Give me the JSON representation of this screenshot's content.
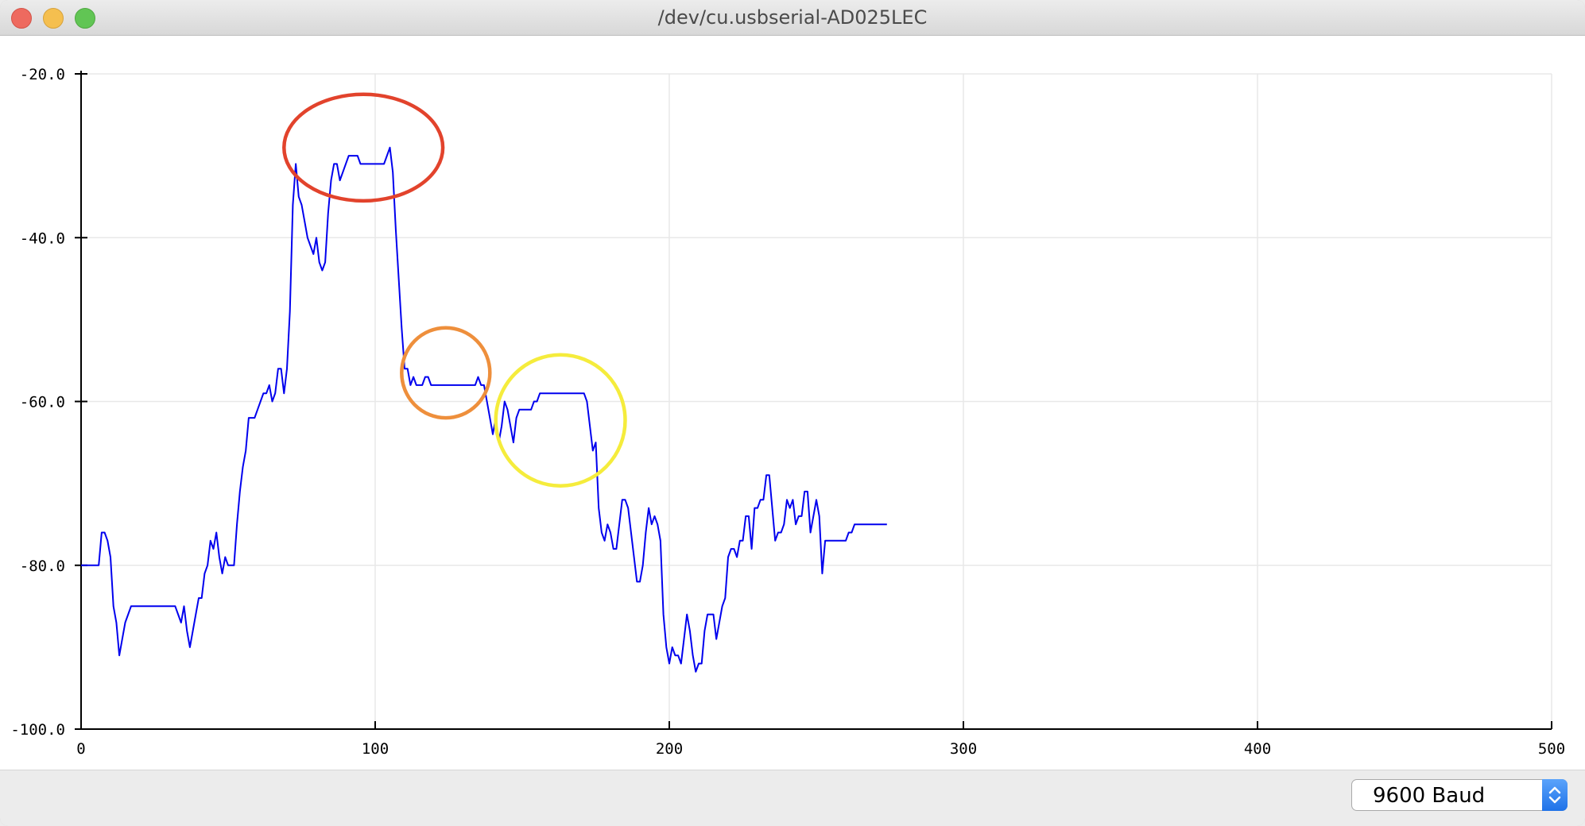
{
  "window": {
    "title": "/dev/cu.usbserial-AD025LEC"
  },
  "footer": {
    "baud_value": "9600 Baud",
    "baud_icon": "chevron-up-down-icon"
  },
  "colors": {
    "series": "#0000ee",
    "annotation_red": "#e2432c",
    "annotation_orange": "#ee8f3c",
    "annotation_yellow": "#f5ec3c"
  },
  "chart_data": {
    "type": "line",
    "xlim": [
      0,
      500
    ],
    "ylim": [
      -100,
      -20
    ],
    "xticks": [
      "0",
      "100",
      "200",
      "300",
      "400",
      "500"
    ],
    "yticks": [
      "-20.0",
      "-40.0",
      "-60.0",
      "-80.0",
      "-100.0"
    ],
    "grid": true,
    "series": [
      {
        "values": [
          [
            0,
            -80
          ],
          [
            6,
            -80
          ],
          [
            7,
            -76
          ],
          [
            8,
            -76
          ],
          [
            9,
            -77
          ],
          [
            10,
            -79
          ],
          [
            11,
            -85
          ],
          [
            12,
            -87
          ],
          [
            13,
            -91
          ],
          [
            14,
            -89
          ],
          [
            15,
            -87
          ],
          [
            16,
            -86
          ],
          [
            17,
            -85
          ],
          [
            30,
            -85
          ],
          [
            32,
            -85
          ],
          [
            33,
            -86
          ],
          [
            34,
            -87
          ],
          [
            35,
            -85
          ],
          [
            36,
            -88
          ],
          [
            37,
            -90
          ],
          [
            38,
            -88
          ],
          [
            39,
            -86
          ],
          [
            40,
            -84
          ],
          [
            41,
            -84
          ],
          [
            42,
            -81
          ],
          [
            43,
            -80
          ],
          [
            44,
            -77
          ],
          [
            45,
            -78
          ],
          [
            46,
            -76
          ],
          [
            47,
            -79
          ],
          [
            48,
            -81
          ],
          [
            49,
            -79
          ],
          [
            50,
            -80
          ],
          [
            52,
            -80
          ],
          [
            53,
            -75
          ],
          [
            54,
            -71
          ],
          [
            55,
            -68
          ],
          [
            56,
            -66
          ],
          [
            57,
            -62
          ],
          [
            59,
            -62
          ],
          [
            60,
            -61
          ],
          [
            61,
            -60
          ],
          [
            62,
            -59
          ],
          [
            63,
            -59
          ],
          [
            64,
            -58
          ],
          [
            65,
            -60
          ],
          [
            66,
            -59
          ],
          [
            67,
            -56
          ],
          [
            68,
            -56
          ],
          [
            69,
            -59
          ],
          [
            70,
            -56
          ],
          [
            71,
            -49
          ],
          [
            72,
            -36
          ],
          [
            73,
            -31
          ],
          [
            74,
            -35
          ],
          [
            75,
            -36
          ],
          [
            76,
            -38
          ],
          [
            77,
            -40
          ],
          [
            78,
            -41
          ],
          [
            79,
            -42
          ],
          [
            80,
            -40
          ],
          [
            81,
            -43
          ],
          [
            82,
            -44
          ],
          [
            83,
            -43
          ],
          [
            84,
            -37
          ],
          [
            85,
            -33
          ],
          [
            86,
            -31
          ],
          [
            87,
            -31
          ],
          [
            88,
            -33
          ],
          [
            89,
            -32
          ],
          [
            90,
            -31
          ],
          [
            91,
            -30
          ],
          [
            93,
            -30
          ],
          [
            94,
            -30
          ],
          [
            95,
            -31
          ],
          [
            103,
            -31
          ],
          [
            104,
            -30
          ],
          [
            105,
            -29
          ],
          [
            106,
            -32
          ],
          [
            107,
            -39
          ],
          [
            108,
            -45
          ],
          [
            109,
            -51
          ],
          [
            110,
            -56
          ],
          [
            111,
            -56
          ],
          [
            112,
            -58
          ],
          [
            113,
            -57
          ],
          [
            114,
            -58
          ],
          [
            116,
            -58
          ],
          [
            117,
            -57
          ],
          [
            118,
            -57
          ],
          [
            119,
            -58
          ],
          [
            134,
            -58
          ],
          [
            135,
            -57
          ],
          [
            136,
            -58
          ],
          [
            137,
            -58
          ],
          [
            138,
            -60
          ],
          [
            139,
            -62
          ],
          [
            140,
            -64
          ],
          [
            141,
            -62
          ],
          [
            142,
            -65
          ],
          [
            143,
            -63
          ],
          [
            144,
            -60
          ],
          [
            145,
            -61
          ],
          [
            146,
            -63
          ],
          [
            147,
            -65
          ],
          [
            148,
            -62
          ],
          [
            149,
            -61
          ],
          [
            153,
            -61
          ],
          [
            154,
            -60
          ],
          [
            155,
            -60
          ],
          [
            156,
            -59
          ],
          [
            171,
            -59
          ],
          [
            172,
            -60
          ],
          [
            173,
            -63
          ],
          [
            174,
            -66
          ],
          [
            175,
            -65
          ],
          [
            176,
            -73
          ],
          [
            177,
            -76
          ],
          [
            178,
            -77
          ],
          [
            179,
            -75
          ],
          [
            180,
            -76
          ],
          [
            181,
            -78
          ],
          [
            182,
            -78
          ],
          [
            183,
            -75
          ],
          [
            184,
            -72
          ],
          [
            185,
            -72
          ],
          [
            186,
            -73
          ],
          [
            187,
            -76
          ],
          [
            188,
            -79
          ],
          [
            189,
            -82
          ],
          [
            190,
            -82
          ],
          [
            191,
            -80
          ],
          [
            192,
            -76
          ],
          [
            193,
            -73
          ],
          [
            194,
            -75
          ],
          [
            195,
            -74
          ],
          [
            196,
            -75
          ],
          [
            197,
            -77
          ],
          [
            198,
            -86
          ],
          [
            199,
            -90
          ],
          [
            200,
            -92
          ],
          [
            201,
            -90
          ],
          [
            202,
            -91
          ],
          [
            203,
            -91
          ],
          [
            204,
            -92
          ],
          [
            205,
            -89
          ],
          [
            206,
            -86
          ],
          [
            207,
            -88
          ],
          [
            208,
            -91
          ],
          [
            209,
            -93
          ],
          [
            210,
            -92
          ],
          [
            211,
            -92
          ],
          [
            212,
            -88
          ],
          [
            213,
            -86
          ],
          [
            214,
            -86
          ],
          [
            215,
            -86
          ],
          [
            216,
            -89
          ],
          [
            217,
            -87
          ],
          [
            218,
            -85
          ],
          [
            219,
            -84
          ],
          [
            220,
            -79
          ],
          [
            221,
            -78
          ],
          [
            222,
            -78
          ],
          [
            223,
            -79
          ],
          [
            224,
            -77
          ],
          [
            225,
            -77
          ],
          [
            226,
            -74
          ],
          [
            227,
            -74
          ],
          [
            228,
            -78
          ],
          [
            229,
            -73
          ],
          [
            230,
            -73
          ],
          [
            231,
            -72
          ],
          [
            232,
            -72
          ],
          [
            233,
            -69
          ],
          [
            234,
            -69
          ],
          [
            235,
            -73
          ],
          [
            236,
            -77
          ],
          [
            237,
            -76
          ],
          [
            238,
            -76
          ],
          [
            239,
            -75
          ],
          [
            240,
            -72
          ],
          [
            241,
            -73
          ],
          [
            242,
            -72
          ],
          [
            243,
            -75
          ],
          [
            244,
            -74
          ],
          [
            245,
            -74
          ],
          [
            246,
            -71
          ],
          [
            247,
            -71
          ],
          [
            248,
            -76
          ],
          [
            249,
            -74
          ],
          [
            250,
            -72
          ],
          [
            251,
            -74
          ],
          [
            252,
            -81
          ],
          [
            253,
            -77
          ],
          [
            260,
            -77
          ],
          [
            261,
            -76
          ],
          [
            262,
            -76
          ],
          [
            263,
            -75
          ],
          [
            274,
            -75
          ]
        ]
      }
    ],
    "annotations": [
      {
        "shape": "ellipse",
        "color": "red",
        "cx": 96,
        "cy": -29,
        "rx": 27,
        "ry": 6.5
      },
      {
        "shape": "ellipse",
        "color": "orange",
        "cx": 124,
        "cy": -56.5,
        "rx": 15,
        "ry": 5.5
      },
      {
        "shape": "ellipse",
        "color": "yellow",
        "cx": 163,
        "cy": -62.3,
        "rx": 22,
        "ry": 8
      }
    ]
  }
}
